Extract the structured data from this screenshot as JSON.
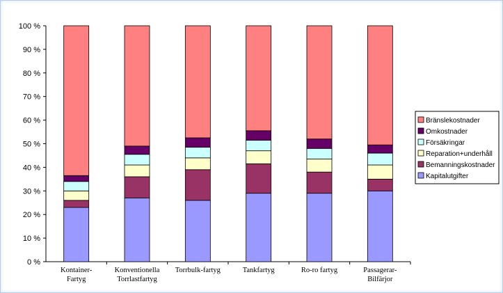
{
  "chart_data": {
    "type": "bar",
    "stacked": true,
    "percent": true,
    "categories": [
      [
        "Kontainer-",
        "Fartyg"
      ],
      [
        "Konventionella",
        "Torrlastfartyg"
      ],
      [
        "Torrbulk-fartyg"
      ],
      [
        "Tankfartyg"
      ],
      [
        "Ro-ro fartyg"
      ],
      [
        "Passagerar-",
        "Bilfärjor"
      ]
    ],
    "series": [
      {
        "name": "Kapitalutgifter",
        "color": "#9999ff",
        "values": [
          23,
          27,
          26,
          29,
          29,
          30
        ]
      },
      {
        "name": "Bemanningskostnader",
        "color": "#993366",
        "values": [
          3,
          9,
          13,
          12.5,
          9,
          5
        ]
      },
      {
        "name": "Reparation+underhåll",
        "color": "#ffffcc",
        "values": [
          4,
          5,
          5,
          5.5,
          5.5,
          6
        ]
      },
      {
        "name": "Försäkringar",
        "color": "#ccffff",
        "values": [
          4,
          4.5,
          4.5,
          4.5,
          4.5,
          5
        ]
      },
      {
        "name": "Omkostnader",
        "color": "#660066",
        "values": [
          2.5,
          3.5,
          4,
          4,
          4,
          3.5
        ]
      },
      {
        "name": "Bränslekostnader",
        "color": "#ff8080",
        "values": [
          63.5,
          51,
          47.5,
          44.5,
          48,
          50.5
        ]
      }
    ],
    "yticks": [
      "0 %",
      "10 %",
      "20 %",
      "30 %",
      "40 %",
      "50 %",
      "60 %",
      "70 %",
      "80 %",
      "90 %",
      "100 %"
    ],
    "ylim": [
      0,
      100
    ],
    "legend": "right"
  }
}
